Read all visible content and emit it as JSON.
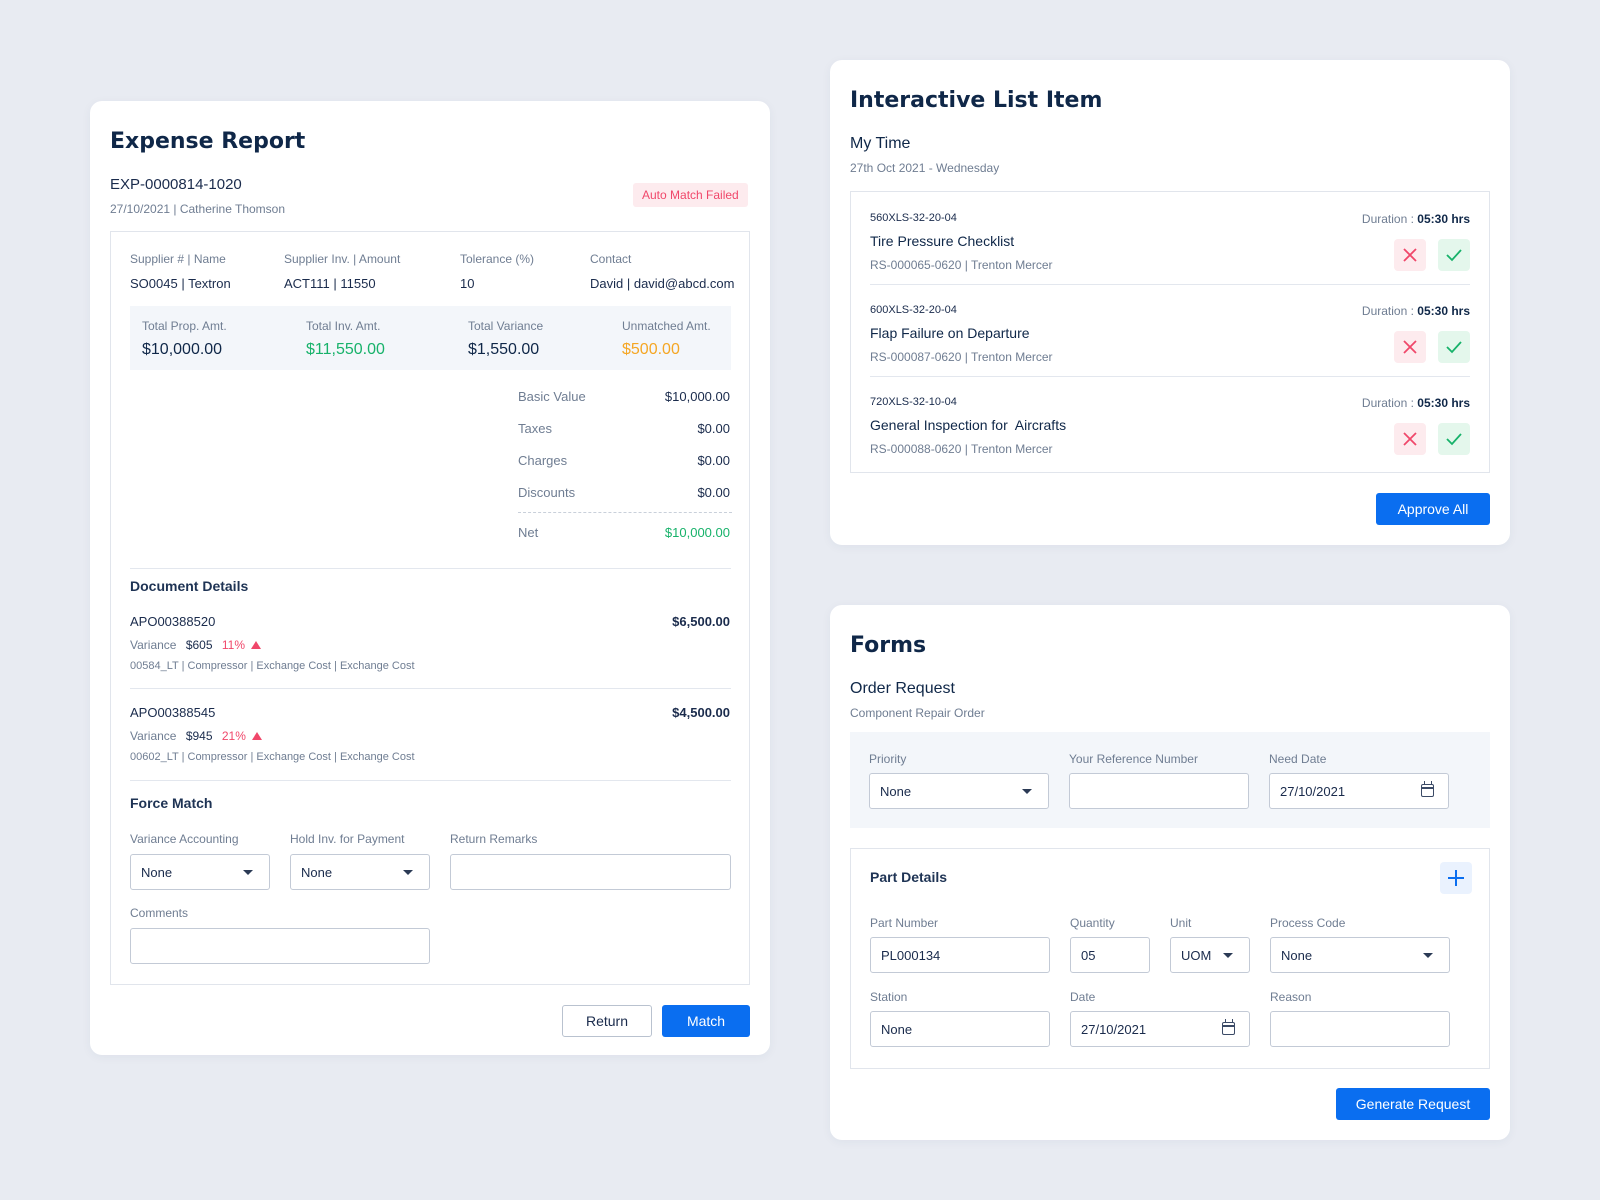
{
  "expense": {
    "title": "Expense Report",
    "report_id": "EXP-0000814-1020",
    "meta": "27/10/2021 | Catherine Thomson",
    "status": "Auto Match Failed",
    "info": [
      {
        "label": "Supplier # | Name",
        "value": "SO0045 | Textron"
      },
      {
        "label": "Supplier Inv. | Amount",
        "value": "ACT111 | 11550"
      },
      {
        "label": "Tolerance (%)",
        "value": "10"
      },
      {
        "label": "Contact",
        "value": "David | david@abcd.com"
      }
    ],
    "totals": [
      {
        "label": "Total Prop. Amt.",
        "value": "$10,000.00",
        "color": "#0f2748"
      },
      {
        "label": "Total Inv. Amt.",
        "value": "$11,550.00",
        "color": "#17b26a"
      },
      {
        "label": "Total Variance",
        "value": "$1,550.00",
        "color": "#0f2748"
      },
      {
        "label": "Unmatched Amt.",
        "value": "$500.00",
        "color": "#f5a623"
      }
    ],
    "breakdown": [
      {
        "label": "Basic Value",
        "value": "$10,000.00"
      },
      {
        "label": "Taxes",
        "value": "$0.00"
      },
      {
        "label": "Charges",
        "value": "$0.00"
      },
      {
        "label": "Discounts",
        "value": "$0.00"
      }
    ],
    "net": {
      "label": "Net",
      "value": "$10,000.00"
    },
    "documents_title": "Document Details",
    "documents": [
      {
        "id": "APO00388520",
        "amount": "$6,500.00",
        "variance_label": "Variance",
        "variance": "$605",
        "pct": "11%",
        "desc": "00584_LT | Compressor | Exchange Cost | Exchange Cost"
      },
      {
        "id": "APO00388545",
        "amount": "$4,500.00",
        "variance_label": "Variance",
        "variance": "$945",
        "pct": "21%",
        "desc": "00602_LT | Compressor | Exchange Cost | Exchange Cost"
      }
    ],
    "force_match": {
      "title": "Force Match",
      "variance_accounting_label": "Variance Accounting",
      "variance_accounting_value": "None",
      "hold_label": "Hold Inv. for Payment",
      "hold_value": "None",
      "remarks_label": "Return Remarks",
      "remarks_value": "",
      "comments_label": "Comments",
      "comments_value": ""
    },
    "return_label": "Return",
    "match_label": "Match"
  },
  "list": {
    "title": "Interactive List Item",
    "subtitle": "My Time",
    "date": "27th Oct 2021 - Wednesday",
    "duration_label": "Duration :",
    "items": [
      {
        "code": "560XLS-32-20-04",
        "name": "Tire Pressure Checklist",
        "ref": "RS-000065-0620 | Trenton Mercer",
        "duration": "05:30 hrs"
      },
      {
        "code": "600XLS-32-20-04",
        "name": "Flap Failure on Departure",
        "ref": "RS-000087-0620 | Trenton Mercer",
        "duration": "05:30 hrs"
      },
      {
        "code": "720XLS-32-10-04",
        "name": "General Inspection for  Aircrafts",
        "ref": "RS-000088-0620 | Trenton Mercer",
        "duration": "05:30 hrs"
      }
    ],
    "approve_all_label": "Approve All"
  },
  "forms": {
    "title": "Forms",
    "subtitle": "Order Request",
    "caption": "Component Repair Order",
    "priority_label": "Priority",
    "priority_value": "None",
    "ref_label": "Your Reference Number",
    "ref_value": "",
    "need_date_label": "Need Date",
    "need_date_value": "27/10/2021",
    "part_details_title": "Part Details",
    "part_number_label": "Part Number",
    "part_number_value": "PL000134",
    "quantity_label": "Quantity",
    "quantity_value": "05",
    "unit_label": "Unit",
    "unit_value": "UOM",
    "process_code_label": "Process Code",
    "process_code_value": "None",
    "station_label": "Station",
    "station_value": "None",
    "date_label": "Date",
    "date_value": "27/10/2021",
    "reason_label": "Reason",
    "reason_value": "",
    "generate_label": "Generate Request"
  },
  "colors": {
    "primary": "#0a6ef0",
    "green": "#17b26a",
    "orange": "#f5a623",
    "red": "#f0476a",
    "navy": "#0f2748"
  }
}
